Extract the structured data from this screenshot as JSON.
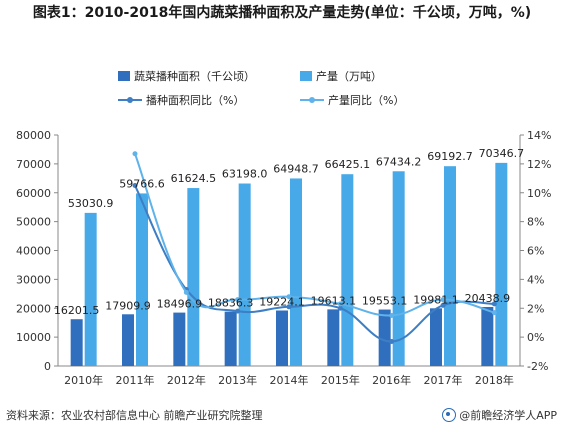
{
  "title": "图表1：2010-2018年国内蔬菜播种面积及产量走势(单位：千公顷，万吨，%)",
  "source": "资料来源：农业农村部信息中心 前瞻产业研究院整理",
  "brand": "@前瞻经济学人APP",
  "colors": {
    "area_bar": "#2f6fbd",
    "output_bar": "#47a9e8",
    "area_line": "#3d7ec4",
    "output_line": "#5fb2ea",
    "axis": "#888888"
  },
  "chart_data": {
    "type": "bar",
    "categories": [
      "2010年",
      "2011年",
      "2012年",
      "2013年",
      "2014年",
      "2015年",
      "2016年",
      "2017年",
      "2018年"
    ],
    "series": [
      {
        "name": "蔬菜播种面积（千公顷）",
        "kind": "bar",
        "axis": "left",
        "values": [
          16201.5,
          17909.9,
          18496.9,
          18836.3,
          19224.1,
          19613.1,
          19553.1,
          19981.1,
          20438.9
        ],
        "labels": [
          "16201.5",
          "17909.9",
          "18496.9",
          "18836.3",
          "19224.1",
          "19613.1",
          "19553.1",
          "19981.1",
          "20438.9"
        ]
      },
      {
        "name": "产量（万吨）",
        "kind": "bar",
        "axis": "left",
        "values": [
          53030.9,
          59766.6,
          61624.5,
          63198.0,
          64948.7,
          66425.1,
          67434.2,
          69192.7,
          70346.7
        ],
        "labels": [
          "53030.9",
          "59766.6",
          "61624.5",
          "63198.0",
          "64948.7",
          "66425.1",
          "67434.2",
          "69192.7",
          "70346.7"
        ]
      },
      {
        "name": "播种面积同比（%）",
        "kind": "line",
        "axis": "right",
        "values": [
          null,
          10.5,
          3.3,
          1.8,
          2.1,
          2.0,
          -0.3,
          2.2,
          2.3
        ]
      },
      {
        "name": "产量同比（%）",
        "kind": "line",
        "axis": "right",
        "values": [
          null,
          12.7,
          3.1,
          2.6,
          2.8,
          2.3,
          1.5,
          2.6,
          1.7
        ]
      }
    ],
    "ylim_left": [
      0,
      80000
    ],
    "yticks_left": [
      "0",
      "10000",
      "20000",
      "30000",
      "40000",
      "50000",
      "60000",
      "70000",
      "80000"
    ],
    "ylim_right": [
      -2,
      14
    ],
    "yticks_right": [
      "-2%",
      "0%",
      "2%",
      "4%",
      "6%",
      "8%",
      "10%",
      "12%",
      "14%"
    ],
    "legend_position": "top"
  }
}
